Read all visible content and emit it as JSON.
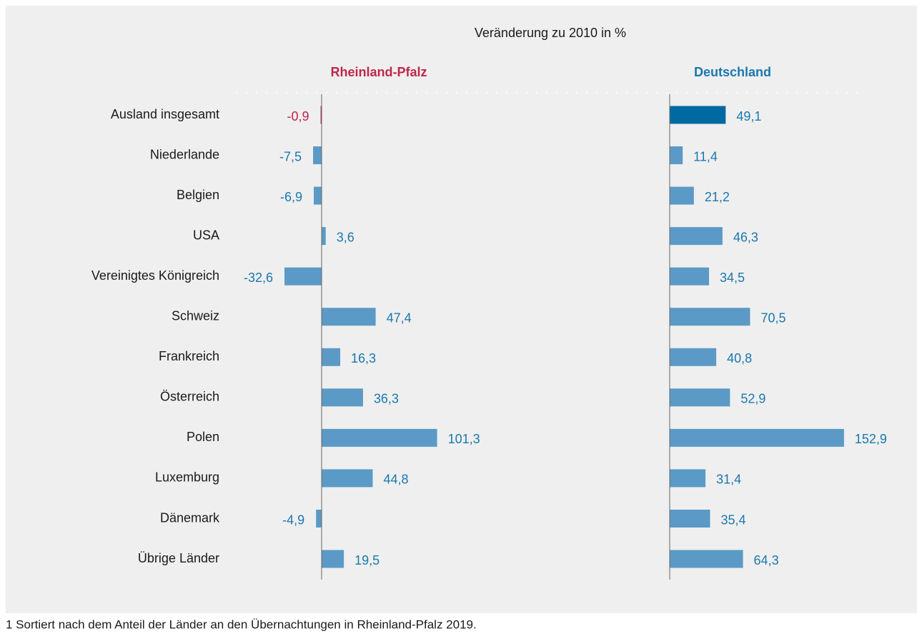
{
  "chart_data": {
    "type": "bar",
    "orientation": "horizontal",
    "title": "Veränderung zu 2010 in %",
    "categories": [
      "Ausland insgesamt",
      "Niederlande",
      "Belgien",
      "USA",
      "Vereinigtes Königreich",
      "Schweiz",
      "Frankreich",
      "Österreich",
      "Polen",
      "Luxemburg",
      "Dänemark",
      "Übrige Länder"
    ],
    "series": [
      {
        "name": "Rheinland-Pfalz",
        "name_color": "#c0264b",
        "values": [
          -0.9,
          -7.5,
          -6.9,
          3.6,
          -32.6,
          47.4,
          16.3,
          36.3,
          101.3,
          44.8,
          -4.9,
          19.5
        ],
        "value_labels": [
          "-0,9",
          "-7,5",
          "-6,9",
          "3,6",
          "-32,6",
          "47,4",
          "16,3",
          "36,3",
          "101,3",
          "44,8",
          "-4,9",
          "19,5"
        ],
        "colors": [
          "#c0264b",
          "#5b9ac6",
          "#5b9ac6",
          "#5b9ac6",
          "#5b9ac6",
          "#5b9ac6",
          "#5b9ac6",
          "#5b9ac6",
          "#5b9ac6",
          "#5b9ac6",
          "#5b9ac6",
          "#5b9ac6"
        ],
        "label_colors": [
          "#c0264b",
          "#1a78ad",
          "#1a78ad",
          "#1a78ad",
          "#1a78ad",
          "#1a78ad",
          "#1a78ad",
          "#1a78ad",
          "#1a78ad",
          "#1a78ad",
          "#1a78ad",
          "#1a78ad"
        ]
      },
      {
        "name": "Deutschland",
        "name_color": "#1a78ad",
        "values": [
          49.1,
          11.4,
          21.2,
          46.3,
          34.5,
          70.5,
          40.8,
          52.9,
          152.9,
          31.4,
          35.4,
          64.3
        ],
        "value_labels": [
          "49,1",
          "11,4",
          "21,2",
          "46,3",
          "34,5",
          "70,5",
          "40,8",
          "52,9",
          "152,9",
          "31,4",
          "35,4",
          "64,3"
        ],
        "colors": [
          "#0069a1",
          "#5b9ac6",
          "#5b9ac6",
          "#5b9ac6",
          "#5b9ac6",
          "#5b9ac6",
          "#5b9ac6",
          "#5b9ac6",
          "#5b9ac6",
          "#5b9ac6",
          "#5b9ac6",
          "#5b9ac6"
        ],
        "label_colors": [
          "#1a78ad",
          "#1a78ad",
          "#1a78ad",
          "#1a78ad",
          "#1a78ad",
          "#1a78ad",
          "#1a78ad",
          "#1a78ad",
          "#1a78ad",
          "#1a78ad",
          "#1a78ad",
          "#1a78ad"
        ]
      }
    ],
    "footnote": "1 Sortiert nach dem Anteil der Länder an den Übernachtungen in Rheinland-Pfalz 2019."
  }
}
